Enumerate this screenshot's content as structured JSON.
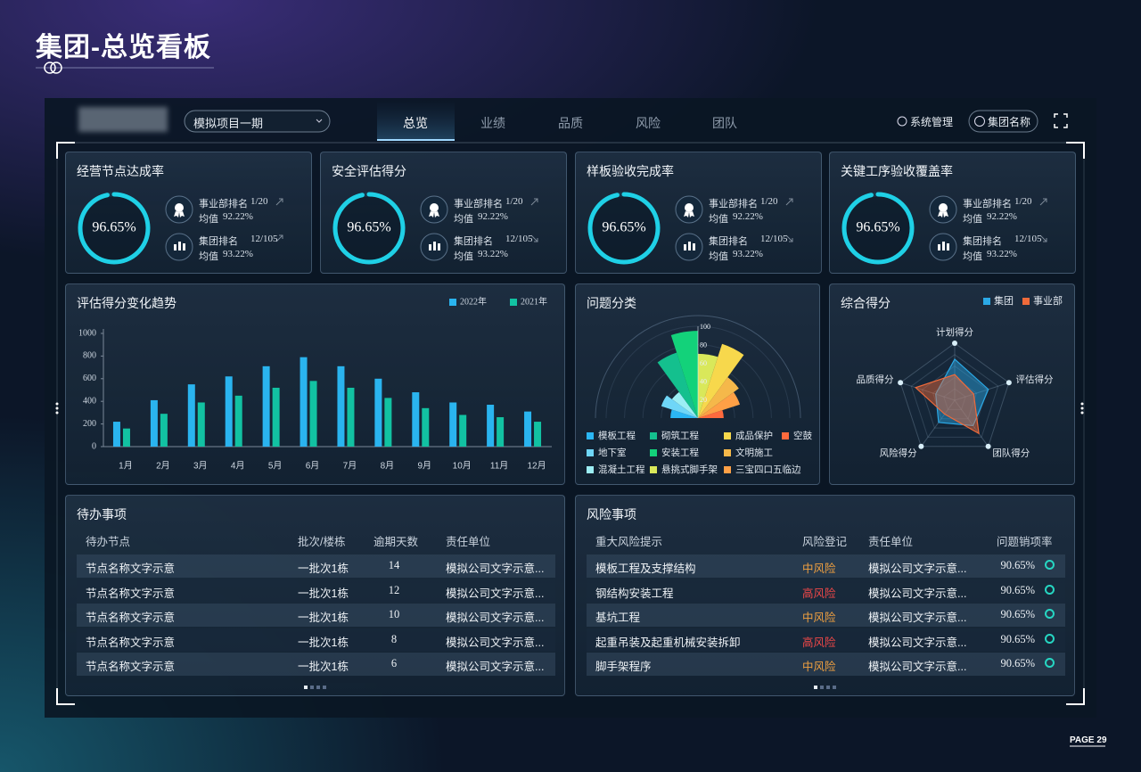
{
  "header": {
    "title": "集团-总览看板",
    "page": "PAGE 29"
  },
  "nav": {
    "project": "模拟项目一期",
    "tabs": [
      "总览",
      "业绩",
      "品质",
      "风险",
      "团队"
    ],
    "active_tab": 0,
    "system": "系统管理",
    "group": "集团名称"
  },
  "kpis": [
    {
      "title": "经营节点达成率",
      "value": 96.65,
      "value_label": "96.65%",
      "dept_rank_label": "事业部排名",
      "dept_rank": "1/20",
      "dept_avg_label": "均值",
      "dept_avg": "92.22%",
      "dept_trend": "up",
      "group_rank_label": "集团排名",
      "group_rank": "12/105",
      "group_avg_label": "均值",
      "group_avg": "93.22%",
      "group_trend": "up"
    },
    {
      "title": "安全评估得分",
      "value": 96.65,
      "value_label": "96.65%",
      "dept_rank_label": "事业部排名",
      "dept_rank": "1/20",
      "dept_avg_label": "均值",
      "dept_avg": "92.22%",
      "dept_trend": "up",
      "group_rank_label": "集团排名",
      "group_rank": "12/105",
      "group_avg_label": "均值",
      "group_avg": "93.22%",
      "group_trend": "down"
    },
    {
      "title": "样板验收完成率",
      "value": 96.65,
      "value_label": "96.65%",
      "dept_rank_label": "事业部排名",
      "dept_rank": "1/20",
      "dept_avg_label": "均值",
      "dept_avg": "92.22%",
      "dept_trend": "up",
      "group_rank_label": "集团排名",
      "group_rank": "12/105",
      "group_avg_label": "均值",
      "group_avg": "93.22%",
      "group_trend": "down"
    },
    {
      "title": "关键工序验收覆盖率",
      "value": 96.65,
      "value_label": "96.65%",
      "dept_rank_label": "事业部排名",
      "dept_rank": "1/20",
      "dept_avg_label": "均值",
      "dept_avg": "92.22%",
      "dept_trend": "up",
      "group_rank_label": "集团排名",
      "group_rank": "12/105",
      "group_avg_label": "均值",
      "group_avg": "93.22%",
      "group_trend": "down"
    }
  ],
  "trend_chart": {
    "type": "bar",
    "title": "评估得分变化趋势",
    "categories": [
      "1月",
      "2月",
      "3月",
      "4月",
      "5月",
      "6月",
      "7月",
      "8月",
      "9月",
      "10月",
      "11月",
      "12月"
    ],
    "series": [
      {
        "name": "2022年",
        "color": "#2ab4ef",
        "values": [
          220,
          410,
          550,
          620,
          710,
          790,
          710,
          600,
          480,
          390,
          370,
          310
        ]
      },
      {
        "name": "2021年",
        "color": "#12c2a2",
        "values": [
          160,
          290,
          390,
          450,
          520,
          580,
          520,
          430,
          340,
          280,
          260,
          220
        ]
      }
    ],
    "ylim": [
      0,
      1000
    ],
    "yticks": [
      0,
      200,
      400,
      600,
      800,
      1000
    ]
  },
  "issue_chart": {
    "type": "polar",
    "title": "问题分类",
    "categories": [
      "模板工程",
      "地下室",
      "混凝土工程",
      "砌筑工程",
      "安装工程",
      "悬挑式脚手架",
      "成品保护",
      "文明施工",
      "三宝四口五临边",
      "空鼓"
    ],
    "colors": [
      "#2bb6f4",
      "#6fd6f7",
      "#9ceef4",
      "#14c08e",
      "#13d27a",
      "#d9e85a",
      "#f7d84c",
      "#f5b84a",
      "#ffa046",
      "#ff6a3d"
    ],
    "values": [
      30,
      42,
      35,
      75,
      95,
      70,
      85,
      55,
      48,
      28
    ],
    "rlim": [
      0,
      100
    ],
    "rticks": [
      20,
      40,
      60,
      80,
      100
    ]
  },
  "score_chart": {
    "type": "radar",
    "title": "综合得分",
    "axes": [
      "计划得分",
      "评估得分",
      "团队得分",
      "风险得分",
      "品质得分"
    ],
    "series": [
      {
        "name": "集团",
        "color": "#2ba9e6",
        "values": [
          72,
          62,
          55,
          48,
          35
        ]
      },
      {
        "name": "事业部",
        "color": "#ef6a3a",
        "values": [
          45,
          35,
          72,
          30,
          72
        ]
      }
    ],
    "rlim": [
      0,
      100
    ]
  },
  "todo": {
    "title": "待办事项",
    "columns": [
      "待办节点",
      "批次/楼栋",
      "逾期天数",
      "责任单位"
    ],
    "rows": [
      [
        "节点名称文字示意",
        "一批次1栋",
        14,
        "模拟公司文字示意..."
      ],
      [
        "节点名称文字示意",
        "一批次1栋",
        12,
        "模拟公司文字示意..."
      ],
      [
        "节点名称文字示意",
        "一批次1栋",
        10,
        "模拟公司文字示意..."
      ],
      [
        "节点名称文字示意",
        "一批次1栋",
        8,
        "模拟公司文字示意..."
      ],
      [
        "节点名称文字示意",
        "一批次1栋",
        6,
        "模拟公司文字示意..."
      ]
    ]
  },
  "risks": {
    "title": "风险事项",
    "columns": [
      "重大风险提示",
      "风险登记",
      "责任单位",
      "问题销项率"
    ],
    "rows": [
      {
        "name": "模板工程及支撑结构",
        "level": "中风险",
        "level_color": "#f0a040",
        "unit": "模拟公司文字示意...",
        "rate": "90.65%"
      },
      {
        "name": "钢结构安装工程",
        "level": "高风险",
        "level_color": "#f04848",
        "unit": "模拟公司文字示意...",
        "rate": "90.65%"
      },
      {
        "name": "基坑工程",
        "level": "中风险",
        "level_color": "#f0a040",
        "unit": "模拟公司文字示意...",
        "rate": "90.65%"
      },
      {
        "name": "起重吊装及起重机械安装拆卸",
        "level": "高风险",
        "level_color": "#f04848",
        "unit": "模拟公司文字示意...",
        "rate": "90.65%"
      },
      {
        "name": "脚手架程序",
        "level": "中风险",
        "level_color": "#f0a040",
        "unit": "模拟公司文字示意...",
        "rate": "90.65%"
      }
    ]
  }
}
